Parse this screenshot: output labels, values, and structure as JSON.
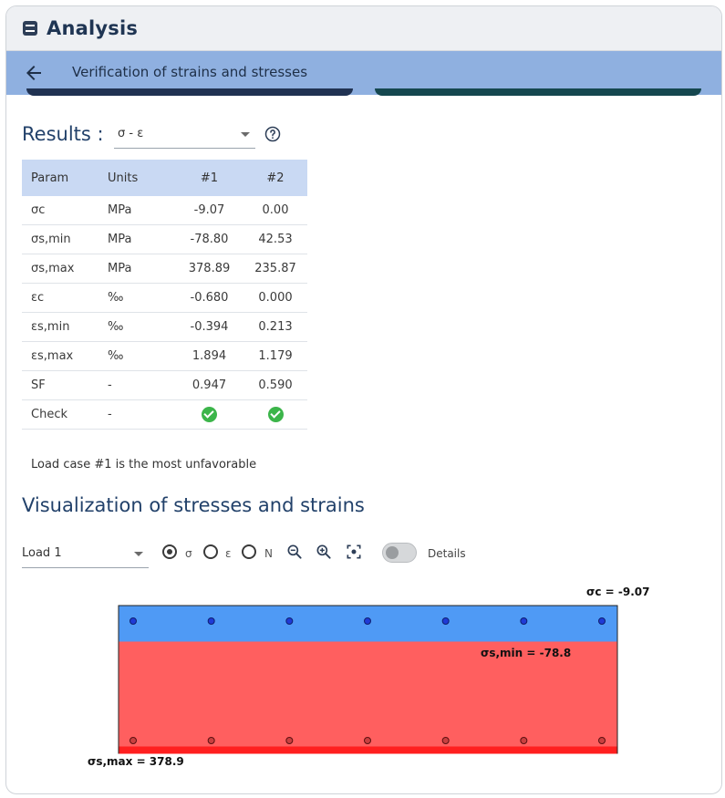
{
  "header": {
    "title": "Analysis",
    "icon": "calculator-icon"
  },
  "subbar": {
    "title": "Verification of strains and stresses",
    "back_icon": "arrow-left-icon"
  },
  "results": {
    "label": "Results :",
    "select_value": "σ - ε",
    "columns": [
      "Param",
      "Units",
      "#1",
      "#2"
    ],
    "rows": [
      {
        "param": "σc",
        "units": "MPa",
        "v1": "-9.07",
        "v2": "0.00"
      },
      {
        "param": "σs,min",
        "units": "MPa",
        "v1": "-78.80",
        "v2": "42.53"
      },
      {
        "param": "σs,max",
        "units": "MPa",
        "v1": "378.89",
        "v2": "235.87"
      },
      {
        "param": "εc",
        "units": "‰",
        "v1": "-0.680",
        "v2": "0.000"
      },
      {
        "param": "εs,min",
        "units": "‰",
        "v1": "-0.394",
        "v2": "0.213"
      },
      {
        "param": "εs,max",
        "units": "‰",
        "v1": "1.894",
        "v2": "1.179"
      },
      {
        "param": "SF",
        "units": "-",
        "v1": "0.947",
        "v2": "0.590"
      },
      {
        "param": "Check",
        "units": "-",
        "v1": "",
        "v2": ""
      }
    ],
    "note": "Load case #1 is the most unfavorable"
  },
  "visualization": {
    "title": "Visualization of stresses and strains",
    "load_select": "Load 1",
    "radio_sigma": "σ",
    "radio_epsilon": "ε",
    "radio_n": "N",
    "selected_radio": "σ",
    "details_label": "Details",
    "details_on": false,
    "labels": {
      "sigma_c": "σc = -9.07",
      "sigma_s_min": "σs,min = -78.8",
      "sigma_s_max": "σs,max = 378.9"
    },
    "colors": {
      "compression": "#4f9af5",
      "tension": "#ff5f5f",
      "tension_max": "#ff1f1f",
      "rebar_top": "#1f3bd6",
      "rebar_bottom": "#c94040"
    },
    "top_bar_count": 7,
    "bottom_bar_count": 7
  }
}
